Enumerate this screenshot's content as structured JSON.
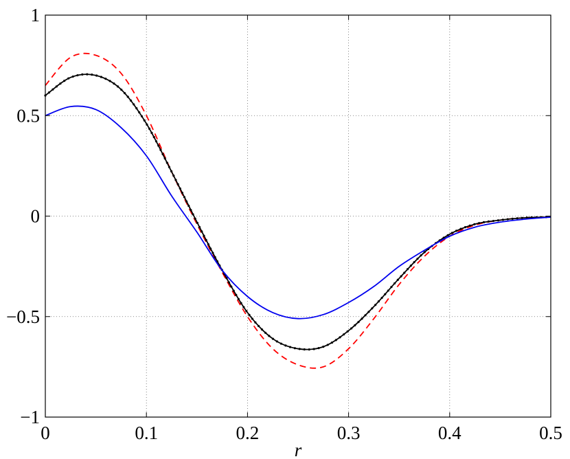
{
  "chart_data": {
    "type": "line",
    "title": "",
    "xlabel": "r",
    "ylabel": "",
    "xlim": [
      0,
      0.5
    ],
    "ylim": [
      -1,
      1
    ],
    "grid": true,
    "grid_style": "dotted",
    "x_ticks": [
      0,
      0.1,
      0.2,
      0.3,
      0.4,
      0.5
    ],
    "x_tick_labels": [
      "0",
      "0.1",
      "0.2",
      "0.3",
      "0.4",
      "0.5"
    ],
    "y_ticks": [
      -1,
      -0.5,
      0,
      0.5,
      1
    ],
    "y_tick_labels": [
      "−1",
      "−0.5",
      "0",
      "0.5",
      "1"
    ],
    "x": [
      0,
      0.025,
      0.05,
      0.075,
      0.1,
      0.125,
      0.15,
      0.175,
      0.2,
      0.225,
      0.25,
      0.275,
      0.3,
      0.325,
      0.35,
      0.375,
      0.4,
      0.425,
      0.45,
      0.475,
      0.5
    ],
    "series": [
      {
        "color": "#ff0000",
        "style": "dashed",
        "marker": "none",
        "values": [
          0.65,
          0.79,
          0.8,
          0.71,
          0.5,
          0.22,
          -0.04,
          -0.28,
          -0.5,
          -0.66,
          -0.74,
          -0.75,
          -0.66,
          -0.51,
          -0.34,
          -0.2,
          -0.1,
          -0.045,
          -0.02,
          -0.008,
          -0.005
        ]
      },
      {
        "color": "#000000",
        "style": "solid",
        "marker": "dot",
        "values": [
          0.6,
          0.69,
          0.7,
          0.63,
          0.46,
          0.22,
          -0.03,
          -0.27,
          -0.48,
          -0.61,
          -0.66,
          -0.65,
          -0.57,
          -0.45,
          -0.31,
          -0.18,
          -0.09,
          -0.04,
          -0.02,
          -0.008,
          -0.005
        ]
      },
      {
        "color": "#0000ee",
        "style": "solid",
        "marker": "none",
        "values": [
          0.5,
          0.545,
          0.53,
          0.44,
          0.3,
          0.1,
          -0.08,
          -0.27,
          -0.4,
          -0.48,
          -0.51,
          -0.49,
          -0.43,
          -0.35,
          -0.25,
          -0.17,
          -0.1,
          -0.055,
          -0.03,
          -0.015,
          -0.005
        ]
      }
    ]
  }
}
